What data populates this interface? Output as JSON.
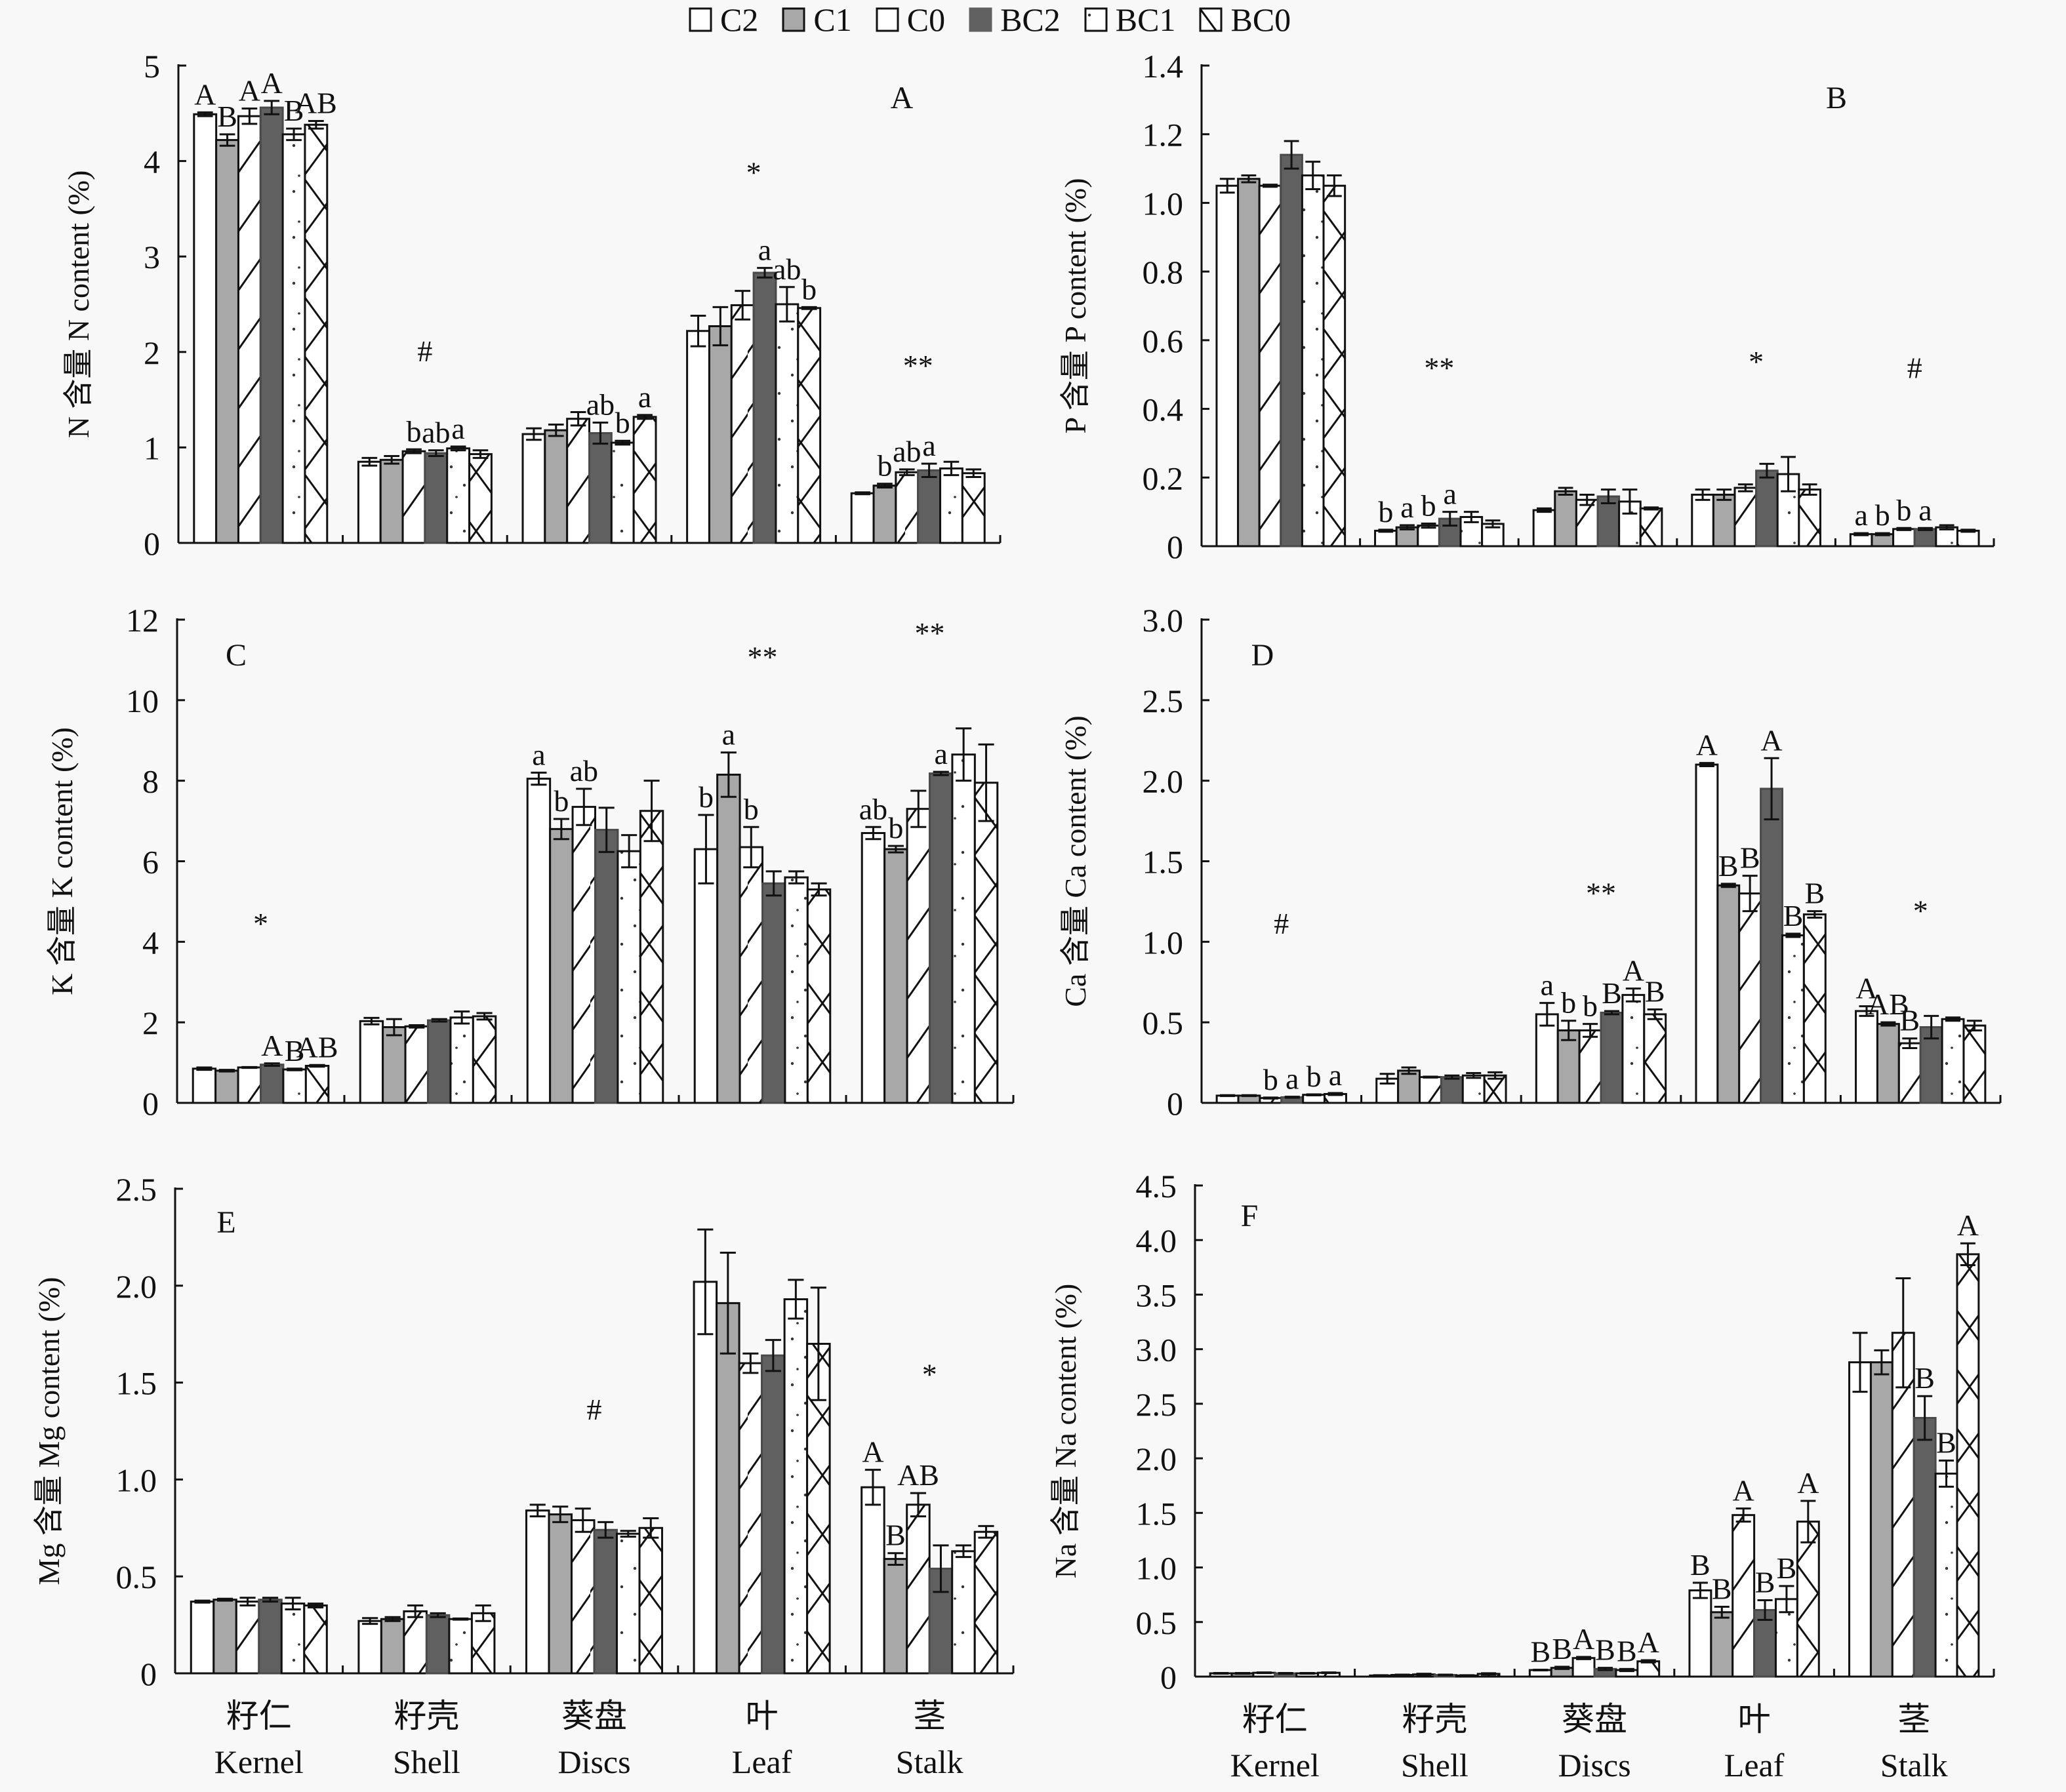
{
  "legend": [
    {
      "key": "C2",
      "label": "C2",
      "pattern": "white"
    },
    {
      "key": "C1",
      "label": "C1",
      "pattern": "lightgray"
    },
    {
      "key": "C0",
      "label": "C0",
      "pattern": "diagonal"
    },
    {
      "key": "BC2",
      "label": "BC2",
      "pattern": "darkgray"
    },
    {
      "key": "BC1",
      "label": "BC1",
      "pattern": "dots"
    },
    {
      "key": "BC0",
      "label": "BC0",
      "pattern": "crosshatch"
    }
  ],
  "colors": {
    "background": "#f8f8f8",
    "ink": "#111111",
    "C1_fill": "#a8a8a8",
    "BC2_fill": "#606060",
    "white_fill": "#ffffff"
  },
  "x_categories": [
    {
      "zh": "籽仁",
      "en": "Kernel"
    },
    {
      "zh": "籽壳",
      "en": "Shell"
    },
    {
      "zh": "葵盘",
      "en": "Discs"
    },
    {
      "zh": "叶",
      "en": "Leaf"
    },
    {
      "zh": "茎",
      "en": "Stalk"
    }
  ],
  "chart_data": [
    {
      "panel": "A",
      "type": "bar",
      "ylabel": "N 含量 N content (%)",
      "ylim": [
        0,
        5
      ],
      "yticks": [
        "0",
        "1",
        "2",
        "3",
        "4",
        "5"
      ],
      "ytick_values": [
        0,
        1,
        2,
        3,
        4,
        5
      ],
      "categories": [
        "Kernel",
        "Shell",
        "Discs",
        "Leaf",
        "Stalk"
      ],
      "series": [
        {
          "name": "C2",
          "values": [
            4.49,
            0.85,
            1.14,
            2.22,
            0.52
          ],
          "errors": [
            0.02,
            0.04,
            0.06,
            0.16,
            0.01
          ]
        },
        {
          "name": "C1",
          "values": [
            4.22,
            0.87,
            1.18,
            2.27,
            0.6
          ],
          "errors": [
            0.06,
            0.04,
            0.06,
            0.2,
            0.02
          ]
        },
        {
          "name": "C0",
          "values": [
            4.47,
            0.96,
            1.3,
            2.49,
            0.74
          ],
          "errors": [
            0.08,
            0.02,
            0.07,
            0.15,
            0.03
          ]
        },
        {
          "name": "BC2",
          "values": [
            4.56,
            0.94,
            1.15,
            2.83,
            0.76
          ],
          "errors": [
            0.07,
            0.03,
            0.11,
            0.05,
            0.07
          ]
        },
        {
          "name": "BC1",
          "values": [
            4.28,
            0.99,
            1.05,
            2.5,
            0.78
          ],
          "errors": [
            0.06,
            0.02,
            0.02,
            0.18,
            0.07
          ]
        },
        {
          "name": "BC0",
          "values": [
            4.38,
            0.93,
            1.32,
            2.46,
            0.73
          ],
          "errors": [
            0.04,
            0.04,
            0.02,
            0.01,
            0.04
          ]
        }
      ],
      "group_annotations": [
        "",
        "#",
        "",
        "*",
        "**"
      ],
      "bar_labels": [
        [
          "A",
          "B",
          "A",
          "A",
          "B",
          "AB"
        ],
        [
          "",
          "",
          "b",
          "ab",
          "a",
          ""
        ],
        [
          "",
          "",
          "",
          "ab",
          "b",
          "a"
        ],
        [
          "",
          "",
          "",
          "a",
          "ab",
          "b"
        ],
        [
          "",
          "b",
          "ab",
          "a",
          "",
          ""
        ]
      ]
    },
    {
      "panel": "B",
      "type": "bar",
      "ylabel": "P 含量 P content (%)",
      "ylim": [
        0,
        1.4
      ],
      "yticks": [
        "0",
        "0.2",
        "0.4",
        "0.6",
        "0.8",
        "1.0",
        "1.2",
        "1.4"
      ],
      "ytick_values": [
        0,
        0.2,
        0.4,
        0.6,
        0.8,
        1.0,
        1.2,
        1.4
      ],
      "categories": [
        "Kernel",
        "Shell",
        "Discs",
        "Leaf",
        "Stalk"
      ],
      "series": [
        {
          "name": "C2",
          "values": [
            1.05,
            0.045,
            0.105,
            0.15,
            0.035
          ],
          "errors": [
            0.02,
            0.003,
            0.005,
            0.015,
            0.003
          ]
        },
        {
          "name": "C1",
          "values": [
            1.07,
            0.055,
            0.16,
            0.15,
            0.035
          ],
          "errors": [
            0.01,
            0.006,
            0.01,
            0.015,
            0.003
          ]
        },
        {
          "name": "C0",
          "values": [
            1.05,
            0.06,
            0.135,
            0.17,
            0.05
          ],
          "errors": [
            0.003,
            0.006,
            0.015,
            0.01,
            0.003
          ]
        },
        {
          "name": "BC2",
          "values": [
            1.14,
            0.08,
            0.145,
            0.22,
            0.05
          ],
          "errors": [
            0.04,
            0.02,
            0.02,
            0.02,
            0.003
          ]
        },
        {
          "name": "BC1",
          "values": [
            1.08,
            0.085,
            0.13,
            0.21,
            0.055
          ],
          "errors": [
            0.04,
            0.015,
            0.035,
            0.05,
            0.006
          ]
        },
        {
          "name": "BC0",
          "values": [
            1.05,
            0.065,
            0.11,
            0.165,
            0.045
          ],
          "errors": [
            0.03,
            0.01,
            0.003,
            0.015,
            0.003
          ]
        }
      ],
      "group_annotations": [
        "",
        "**",
        "",
        "*",
        "#"
      ],
      "bar_labels": [
        [
          "",
          "",
          "",
          "",
          "",
          ""
        ],
        [
          "b",
          "a",
          "b",
          "a",
          "",
          ""
        ],
        [
          "",
          "",
          "",
          "",
          "",
          ""
        ],
        [
          "",
          "",
          "",
          "",
          "",
          ""
        ],
        [
          "a",
          "b",
          "b",
          "a",
          "",
          ""
        ]
      ]
    },
    {
      "panel": "C",
      "type": "bar",
      "ylabel": "K 含量 K content (%)",
      "ylim": [
        0,
        12
      ],
      "yticks": [
        "0",
        "2",
        "4",
        "6",
        "8",
        "10",
        "12"
      ],
      "ytick_values": [
        0,
        2,
        4,
        6,
        8,
        10,
        12
      ],
      "categories": [
        "Kernel",
        "Shell",
        "Discs",
        "Leaf",
        "Stalk"
      ],
      "series": [
        {
          "name": "C2",
          "values": [
            0.85,
            2.03,
            8.05,
            6.3,
            6.7
          ],
          "errors": [
            0.03,
            0.08,
            0.15,
            0.85,
            0.15
          ]
        },
        {
          "name": "C1",
          "values": [
            0.8,
            1.88,
            6.8,
            8.15,
            6.3
          ],
          "errors": [
            0.02,
            0.2,
            0.25,
            0.55,
            0.08
          ]
        },
        {
          "name": "C0",
          "values": [
            0.88,
            1.9,
            7.35,
            6.35,
            7.3
          ],
          "errors": [
            0.01,
            0.03,
            0.45,
            0.5,
            0.45
          ]
        },
        {
          "name": "BC2",
          "values": [
            0.95,
            2.05,
            6.78,
            5.45,
            8.18
          ],
          "errors": [
            0.03,
            0.03,
            0.55,
            0.3,
            0.04
          ]
        },
        {
          "name": "BC1",
          "values": [
            0.83,
            2.12,
            6.25,
            5.6,
            8.65
          ],
          "errors": [
            0.02,
            0.15,
            0.4,
            0.15,
            0.65
          ]
        },
        {
          "name": "BC0",
          "values": [
            0.92,
            2.15,
            7.25,
            5.3,
            7.95
          ],
          "errors": [
            0.02,
            0.08,
            0.75,
            0.15,
            0.95
          ]
        }
      ],
      "group_annotations": [
        "*",
        "",
        "",
        "**",
        "**"
      ],
      "bar_labels": [
        [
          "",
          "",
          "",
          "A",
          "B",
          "AB"
        ],
        [
          "",
          "",
          "",
          "",
          "",
          ""
        ],
        [
          "a",
          "b",
          "ab",
          "",
          "",
          ""
        ],
        [
          "b",
          "a",
          "b",
          "",
          "",
          ""
        ],
        [
          "ab",
          "b",
          "",
          "a",
          "",
          ""
        ]
      ]
    },
    {
      "panel": "D",
      "type": "bar",
      "ylabel": "Ca 含量 Ca content (%)",
      "ylim": [
        0,
        3.0
      ],
      "yticks": [
        "0",
        "0.5",
        "1.0",
        "1.5",
        "2.0",
        "2.5",
        "3.0"
      ],
      "ytick_values": [
        0,
        0.5,
        1.0,
        1.5,
        2.0,
        2.5,
        3.0
      ],
      "categories": [
        "Kernel",
        "Shell",
        "Discs",
        "Leaf",
        "Stalk"
      ],
      "series": [
        {
          "name": "C2",
          "values": [
            0.045,
            0.15,
            0.55,
            2.1,
            0.57
          ],
          "errors": [
            0.003,
            0.03,
            0.07,
            0.01,
            0.03
          ]
        },
        {
          "name": "C1",
          "values": [
            0.045,
            0.2,
            0.45,
            1.35,
            0.49
          ],
          "errors": [
            0.003,
            0.02,
            0.06,
            0.01,
            0.01
          ]
        },
        {
          "name": "C0",
          "values": [
            0.03,
            0.16,
            0.45,
            1.3,
            0.37
          ],
          "errors": [
            0.003,
            0.003,
            0.04,
            0.11,
            0.03
          ]
        },
        {
          "name": "BC2",
          "values": [
            0.035,
            0.16,
            0.56,
            1.95,
            0.47
          ],
          "errors": [
            0.003,
            0.01,
            0.01,
            0.19,
            0.07
          ]
        },
        {
          "name": "BC1",
          "values": [
            0.05,
            0.17,
            0.67,
            1.04,
            0.52
          ],
          "errors": [
            0.003,
            0.015,
            0.04,
            0.01,
            0.01
          ]
        },
        {
          "name": "BC0",
          "values": [
            0.055,
            0.17,
            0.55,
            1.17,
            0.48
          ],
          "errors": [
            0.006,
            0.02,
            0.03,
            0.02,
            0.03
          ]
        }
      ],
      "group_annotations": [
        "#",
        "",
        "**",
        "",
        "*"
      ],
      "bar_labels": [
        [
          "",
          "",
          "b",
          "a",
          "b",
          "a"
        ],
        [
          "",
          "",
          "",
          "",
          "",
          ""
        ],
        [
          "a",
          "b",
          "b",
          "B",
          "A",
          "B"
        ],
        [
          "A",
          "B",
          "B",
          "A",
          "B",
          "B"
        ],
        [
          "A",
          "AB",
          "B",
          "",
          "",
          ""
        ]
      ]
    },
    {
      "panel": "E",
      "type": "bar",
      "ylabel": "Mg 含量 Mg content (%)",
      "ylim": [
        0,
        2.5
      ],
      "yticks": [
        "0",
        "0.5",
        "1.0",
        "1.5",
        "2.0",
        "2.5"
      ],
      "ytick_values": [
        0,
        0.5,
        1.0,
        1.5,
        2.0,
        2.5
      ],
      "categories": [
        "Kernel",
        "Shell",
        "Discs",
        "Leaf",
        "Stalk"
      ],
      "series": [
        {
          "name": "C2",
          "values": [
            0.37,
            0.27,
            0.84,
            2.02,
            0.96
          ],
          "errors": [
            0.005,
            0.015,
            0.03,
            0.27,
            0.09
          ]
        },
        {
          "name": "C1",
          "values": [
            0.38,
            0.28,
            0.82,
            1.91,
            0.59
          ],
          "errors": [
            0.005,
            0.01,
            0.04,
            0.26,
            0.03
          ]
        },
        {
          "name": "C0",
          "values": [
            0.37,
            0.32,
            0.79,
            1.6,
            0.87
          ],
          "errors": [
            0.02,
            0.03,
            0.06,
            0.05,
            0.06
          ]
        },
        {
          "name": "BC2",
          "values": [
            0.38,
            0.3,
            0.74,
            1.64,
            0.54
          ],
          "errors": [
            0.01,
            0.01,
            0.04,
            0.08,
            0.12
          ]
        },
        {
          "name": "BC1",
          "values": [
            0.36,
            0.28,
            0.72,
            1.93,
            0.63
          ],
          "errors": [
            0.03,
            0.003,
            0.015,
            0.1,
            0.03
          ]
        },
        {
          "name": "BC0",
          "values": [
            0.35,
            0.31,
            0.75,
            1.7,
            0.73
          ],
          "errors": [
            0.01,
            0.04,
            0.05,
            0.29,
            0.03
          ]
        }
      ],
      "group_annotations": [
        "",
        "",
        "#",
        "",
        "*"
      ],
      "bar_labels": [
        [
          "",
          "",
          "",
          "",
          "",
          ""
        ],
        [
          "",
          "",
          "",
          "",
          "",
          ""
        ],
        [
          "",
          "",
          "",
          "",
          "",
          ""
        ],
        [
          "",
          "",
          "",
          "",
          "",
          ""
        ],
        [
          "A",
          "B",
          "AB",
          "",
          "",
          ""
        ]
      ]
    },
    {
      "panel": "F",
      "type": "bar",
      "ylabel": "Na 含量 Na content (%)",
      "ylim": [
        0,
        4.5
      ],
      "yticks": [
        "0",
        "0.5",
        "1.0",
        "1.5",
        "2.0",
        "2.5",
        "3.0",
        "3.5",
        "4.0",
        "4.5"
      ],
      "ytick_values": [
        0,
        0.5,
        1.0,
        1.5,
        2.0,
        2.5,
        3.0,
        3.5,
        4.0,
        4.5
      ],
      "categories": [
        "Kernel",
        "Shell",
        "Discs",
        "Leaf",
        "Stalk"
      ],
      "series": [
        {
          "name": "C2",
          "values": [
            0.03,
            0.01,
            0.06,
            0.79,
            2.88
          ],
          "errors": [
            0.003,
            0.003,
            0.003,
            0.07,
            0.27
          ]
        },
        {
          "name": "C1",
          "values": [
            0.03,
            0.015,
            0.08,
            0.59,
            2.88
          ],
          "errors": [
            0.003,
            0.003,
            0.01,
            0.05,
            0.11
          ]
        },
        {
          "name": "C0",
          "values": [
            0.035,
            0.02,
            0.17,
            1.48,
            3.15
          ],
          "errors": [
            0.003,
            0.006,
            0.01,
            0.06,
            0.5
          ]
        },
        {
          "name": "BC2",
          "values": [
            0.03,
            0.015,
            0.07,
            0.61,
            2.37
          ],
          "errors": [
            0.003,
            0.003,
            0.01,
            0.09,
            0.2
          ]
        },
        {
          "name": "BC1",
          "values": [
            0.03,
            0.01,
            0.06,
            0.71,
            1.86
          ],
          "errors": [
            0.003,
            0.003,
            0.01,
            0.12,
            0.12
          ]
        },
        {
          "name": "BC0",
          "values": [
            0.035,
            0.025,
            0.14,
            1.42,
            3.87
          ],
          "errors": [
            0.003,
            0.006,
            0.01,
            0.19,
            0.1
          ]
        }
      ],
      "group_annotations": [
        "",
        "",
        "",
        "",
        ""
      ],
      "bar_labels": [
        [
          "",
          "",
          "",
          "",
          "",
          ""
        ],
        [
          "",
          "",
          "",
          "",
          "",
          ""
        ],
        [
          "B",
          "B",
          "A",
          "B",
          "B",
          "A"
        ],
        [
          "B",
          "B",
          "A",
          "B",
          "B",
          "A"
        ],
        [
          "",
          "",
          "",
          "B",
          "B",
          "A"
        ]
      ]
    }
  ]
}
